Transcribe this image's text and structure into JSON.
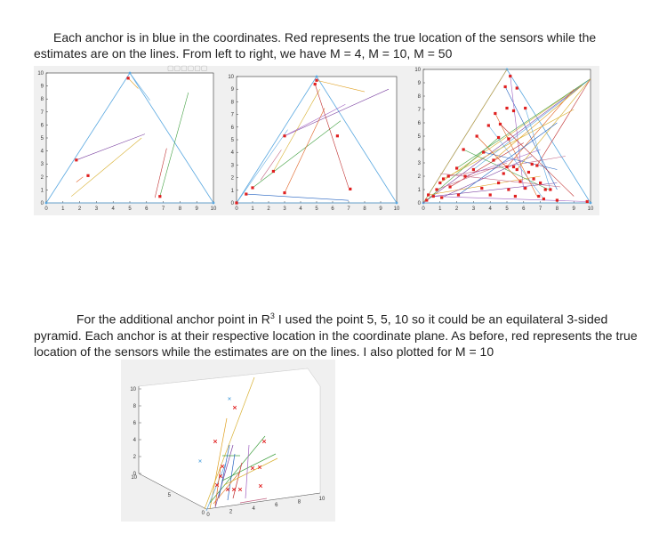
{
  "paragraph1": {
    "text": "Each anchor is in blue in the coordinates. Red represents the true location of the sensors while the estimates are on the lines. From left to right, we have M = 4, M = 10, M = 50"
  },
  "paragraph2": {
    "text_before_sup": "For the additional anchor point in R",
    "sup": "3",
    "text_after_sup": " I used the point 5, 5, 10 so it could be an equilateral 3-sided pyramid. Each anchor is at their respective location in the coordinate plane. As before, red represents the true location of the sensors while the estimates are on the lines. I also plotted for M = 10"
  },
  "colors": {
    "anchor": "#5aa8e0",
    "sensor": "#e02020",
    "axes_bg": "#ffffff",
    "figure_bg": "#f0f0f0"
  },
  "chart_data": [
    {
      "type": "scatter",
      "sensors": 4,
      "xlim": [
        0,
        10
      ],
      "ylim": [
        0,
        10
      ],
      "xticks": [
        "0",
        "1",
        "2",
        "3",
        "4",
        "5",
        "6",
        "7",
        "8",
        "9",
        "10"
      ],
      "yticks": [
        "0",
        "1",
        "2",
        "3",
        "4",
        "5",
        "6",
        "7",
        "8",
        "9",
        "10"
      ],
      "anchors": [
        [
          0,
          0
        ],
        [
          5,
          10
        ],
        [
          10,
          0
        ]
      ],
      "true_points": [
        [
          4.9,
          9.6
        ],
        [
          1.8,
          3.3
        ],
        [
          2.5,
          2.1
        ],
        [
          6.8,
          0.5
        ]
      ],
      "estimate_lines": [
        [
          [
            4.9,
            9.6
          ],
          [
            5.5,
            8.8
          ]
        ],
        [
          [
            1.8,
            3.3
          ],
          [
            5.9,
            5.3
          ]
        ],
        [
          [
            1.5,
            0.5
          ],
          [
            5.7,
            5.0
          ]
        ],
        [
          [
            6.8,
            0.5
          ],
          [
            8.5,
            8.5
          ]
        ],
        [
          [
            5.0,
            10.0
          ],
          [
            6.2,
            7.9
          ]
        ],
        [
          [
            1.8,
            1.6
          ],
          [
            2.2,
            2.0
          ]
        ],
        [
          [
            6.5,
            0.4
          ],
          [
            7.2,
            4.2
          ]
        ]
      ]
    },
    {
      "type": "scatter",
      "sensors": 10,
      "xlim": [
        0,
        10
      ],
      "ylim": [
        0,
        10
      ],
      "xticks": [
        "0",
        "1",
        "2",
        "3",
        "4",
        "5",
        "6",
        "7",
        "8",
        "9",
        "10"
      ],
      "yticks": [
        "0",
        "1",
        "2",
        "3",
        "4",
        "5",
        "6",
        "7",
        "8",
        "9",
        "10"
      ],
      "anchors": [
        [
          0,
          0
        ],
        [
          5,
          10
        ],
        [
          10,
          0
        ]
      ],
      "true_points": [
        [
          4.9,
          9.4
        ],
        [
          5.0,
          9.7
        ],
        [
          3.0,
          5.3
        ],
        [
          6.3,
          5.3
        ],
        [
          2.3,
          2.5
        ],
        [
          1.0,
          1.2
        ],
        [
          0.6,
          0.7
        ],
        [
          3.0,
          0.8
        ],
        [
          7.1,
          1.1
        ],
        [
          0,
          0
        ]
      ],
      "estimate_lines": [
        [
          [
            5.0,
            9.7
          ],
          [
            8.0,
            8.8
          ]
        ],
        [
          [
            3.0,
            5.3
          ],
          [
            9.5,
            9.0
          ]
        ],
        [
          [
            2.3,
            2.5
          ],
          [
            5.2,
            9.0
          ]
        ],
        [
          [
            1.0,
            1.2
          ],
          [
            6.5,
            6.5
          ]
        ],
        [
          [
            0,
            0
          ],
          [
            3.2,
            5.8
          ]
        ],
        [
          [
            3.0,
            0.8
          ],
          [
            5.5,
            7.5
          ]
        ],
        [
          [
            4.9,
            9.4
          ],
          [
            7.0,
            1.2
          ]
        ],
        [
          [
            0.6,
            0.7
          ],
          [
            7.0,
            0.2
          ]
        ],
        [
          [
            3.0,
            5.3
          ],
          [
            6.8,
            7.8
          ]
        ],
        [
          [
            1.5,
            1.8
          ],
          [
            2.8,
            4.2
          ]
        ]
      ]
    },
    {
      "type": "scatter",
      "sensors": 50,
      "xlim": [
        0,
        10
      ],
      "ylim": [
        0,
        10
      ],
      "xticks": [
        "0",
        "1",
        "2",
        "3",
        "4",
        "5",
        "6",
        "7",
        "8",
        "9",
        "10"
      ],
      "yticks": [
        "0",
        "1",
        "2",
        "3",
        "4",
        "5",
        "6",
        "7",
        "8",
        "9",
        "10"
      ],
      "anchors": [
        [
          0,
          0
        ],
        [
          5,
          10
        ],
        [
          10,
          0
        ]
      ],
      "true_points": [
        [
          5.2,
          9.5
        ],
        [
          4.9,
          8.7
        ],
        [
          5.6,
          8.6
        ],
        [
          5.0,
          7.1
        ],
        [
          6.1,
          7.1
        ],
        [
          4.3,
          6.7
        ],
        [
          5.4,
          6.9
        ],
        [
          3.9,
          5.8
        ],
        [
          4.6,
          5.9
        ],
        [
          5.1,
          4.8
        ],
        [
          3.2,
          5.0
        ],
        [
          4.5,
          4.9
        ],
        [
          2.4,
          4.0
        ],
        [
          3.6,
          3.8
        ],
        [
          4.2,
          3.2
        ],
        [
          6.5,
          2.9
        ],
        [
          5.0,
          2.7
        ],
        [
          5.4,
          2.7
        ],
        [
          6.8,
          2.8
        ],
        [
          2.0,
          2.6
        ],
        [
          3.0,
          2.5
        ],
        [
          5.6,
          2.5
        ],
        [
          1.5,
          2.0
        ],
        [
          2.5,
          2.0
        ],
        [
          4.8,
          2.2
        ],
        [
          6.3,
          2.3
        ],
        [
          1.0,
          1.5
        ],
        [
          1.2,
          1.8
        ],
        [
          4.5,
          1.5
        ],
        [
          5.8,
          1.6
        ],
        [
          7.0,
          1.5
        ],
        [
          0.8,
          1.0
        ],
        [
          1.6,
          1.2
        ],
        [
          5.1,
          1.0
        ],
        [
          6.1,
          1.1
        ],
        [
          7.3,
          1.0
        ],
        [
          7.6,
          1.0
        ],
        [
          0.3,
          0.6
        ],
        [
          0.6,
          0.5
        ],
        [
          1.1,
          0.4
        ],
        [
          4.0,
          0.6
        ],
        [
          5.5,
          0.5
        ],
        [
          6.9,
          0.5
        ],
        [
          7.2,
          0.3
        ],
        [
          8.0,
          0.2
        ],
        [
          0.2,
          0.2
        ],
        [
          2.1,
          0.6
        ],
        [
          3.5,
          1.1
        ],
        [
          6.6,
          1.8
        ],
        [
          9.8,
          0.1
        ]
      ],
      "estimate_lines": [
        [
          [
            0,
            0
          ],
          [
            5,
            10
          ]
        ],
        [
          [
            0,
            0
          ],
          [
            10,
            9.3
          ]
        ],
        [
          [
            1.0,
            1.5
          ],
          [
            10,
            9.3
          ]
        ],
        [
          [
            2.0,
            2.6
          ],
          [
            10,
            9.3
          ]
        ],
        [
          [
            3.0,
            2.5
          ],
          [
            10,
            9.3
          ]
        ],
        [
          [
            5.0,
            2.7
          ],
          [
            9.0,
            8.5
          ]
        ],
        [
          [
            6.8,
            2.8
          ],
          [
            10,
            9.3
          ]
        ],
        [
          [
            4.9,
            8.7
          ],
          [
            8.0,
            1.0
          ]
        ],
        [
          [
            5.2,
            9.5
          ],
          [
            6.0,
            1.0
          ]
        ],
        [
          [
            1.5,
            2.0
          ],
          [
            8.5,
            3.5
          ]
        ],
        [
          [
            0.3,
            0.6
          ],
          [
            7.0,
            2.0
          ]
        ],
        [
          [
            0.6,
            0.5
          ],
          [
            8.0,
            1.5
          ]
        ],
        [
          [
            1.2,
            1.8
          ],
          [
            9.0,
            7.0
          ]
        ],
        [
          [
            2.4,
            4.0
          ],
          [
            7.5,
            1.0
          ]
        ],
        [
          [
            3.9,
            5.8
          ],
          [
            7.2,
            0.3
          ]
        ],
        [
          [
            4.3,
            6.7
          ],
          [
            6.8,
            0.5
          ]
        ],
        [
          [
            1.6,
            1.2
          ],
          [
            6.0,
            4.5
          ]
        ],
        [
          [
            3.6,
            3.8
          ],
          [
            8.0,
            2.5
          ]
        ],
        [
          [
            2.5,
            2.0
          ],
          [
            7.0,
            4.0
          ]
        ],
        [
          [
            0.8,
            1.0
          ],
          [
            5.0,
            3.0
          ]
        ],
        [
          [
            4.2,
            3.2
          ],
          [
            9.5,
            8.8
          ]
        ],
        [
          [
            1.1,
            0.4
          ],
          [
            6.5,
            3.5
          ]
        ],
        [
          [
            5.6,
            2.5
          ],
          [
            10,
            9.3
          ]
        ],
        [
          [
            0.2,
            0.2
          ],
          [
            4.5,
            4.9
          ]
        ],
        [
          [
            6.1,
            7.1
          ],
          [
            7.6,
            1.0
          ]
        ],
        [
          [
            3.2,
            5.0
          ],
          [
            5.8,
            1.6
          ]
        ],
        [
          [
            4.6,
            5.9
          ],
          [
            9.0,
            0.5
          ]
        ],
        [
          [
            2.1,
            0.6
          ],
          [
            8.0,
            6.0
          ]
        ],
        [
          [
            0.5,
            0.5
          ],
          [
            9.8,
            0.1
          ]
        ],
        [
          [
            1.0,
            2.2
          ],
          [
            8.2,
            1.2
          ]
        ]
      ]
    }
  ],
  "chart_3d": {
    "type": "scatter3d",
    "zticks": [
      "0",
      "2",
      "4",
      "6",
      "8",
      "10"
    ],
    "yticks": [
      "10",
      "5",
      "0"
    ],
    "xticks": [
      "0",
      "2",
      "4",
      "6",
      "8",
      "10"
    ],
    "anchor_markers": [
      [
        258,
        448
      ],
      [
        225,
        518
      ]
    ],
    "sensor_markers": [
      [
        264,
        458
      ],
      [
        242,
        496
      ],
      [
        297,
        496
      ],
      [
        250,
        524
      ],
      [
        248,
        535
      ],
      [
        284,
        526
      ],
      [
        292,
        525
      ],
      [
        256,
        550
      ],
      [
        263,
        550
      ],
      [
        270,
        550
      ],
      [
        293,
        546
      ],
      [
        244,
        545
      ]
    ],
    "estimate_lines": [
      [
        [
          230,
          572
        ],
        [
          286,
          424
        ],
        "#d8b030"
      ],
      [
        [
          236,
          572
        ],
        [
          255,
          470
        ],
        "#e0a020"
      ],
      [
        [
          242,
          570
        ],
        [
          262,
          500
        ],
        "#7a40a0"
      ],
      [
        [
          236,
          565
        ],
        [
          298,
          490
        ],
        "#40a040"
      ],
      [
        [
          250,
          540
        ],
        [
          310,
          510
        ],
        "#40a040"
      ],
      [
        [
          250,
          512
        ],
        [
          270,
          512
        ],
        "#40a040"
      ],
      [
        [
          246,
          560
        ],
        [
          258,
          500
        ],
        "#2060c0"
      ],
      [
        [
          256,
          562
        ],
        [
          264,
          510
        ],
        "#2060c0"
      ],
      [
        [
          240,
          566
        ],
        [
          270,
          530
        ],
        "#e08030"
      ],
      [
        [
          262,
          560
        ],
        [
          272,
          520
        ],
        "#c03030"
      ],
      [
        [
          252,
          545
        ],
        [
          312,
          515
        ],
        "#d8b030"
      ],
      [
        [
          232,
          574
        ],
        [
          254,
          520
        ],
        "#5aa8e0"
      ],
      [
        [
          276,
          560
        ],
        [
          280,
          500
        ],
        "#a060c0"
      ],
      [
        [
          242,
          568
        ],
        [
          248,
          525
        ],
        "#e06020"
      ],
      [
        [
          270,
          565
        ],
        [
          300,
          560
        ],
        "#c06080"
      ]
    ]
  }
}
